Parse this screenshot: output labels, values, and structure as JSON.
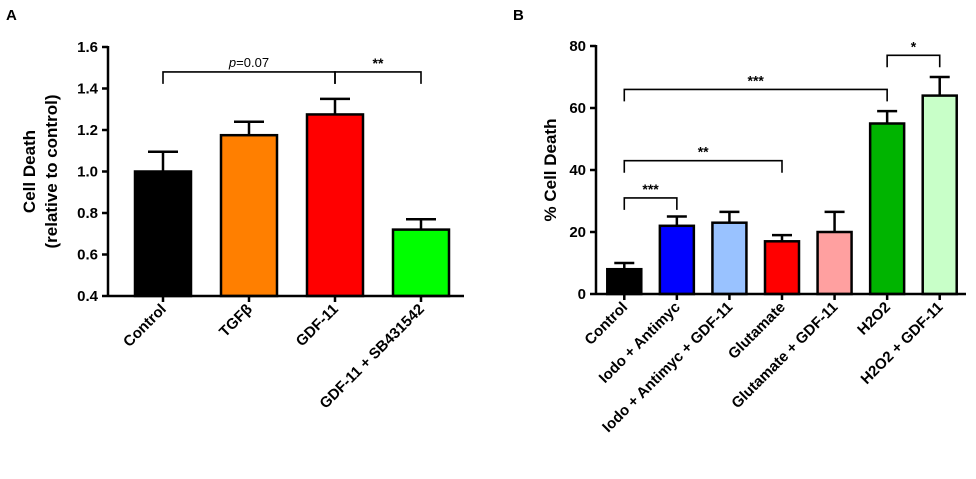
{
  "chart_data": [
    {
      "panel": "A",
      "type": "bar",
      "ylabel_lines": [
        "Cell Death",
        "(relative to control)"
      ],
      "xlabel": "",
      "ylim": [
        0.4,
        1.6
      ],
      "yticks": [
        "0.4",
        "0.6",
        "0.8",
        "1.0",
        "1.2",
        "1.4",
        "1.6"
      ],
      "categories": [
        "Control",
        "TGFβ",
        "GDF-11",
        "GDF-11 + SB431542"
      ],
      "values": [
        1.0,
        1.175,
        1.275,
        0.72
      ],
      "errors": [
        0.095,
        0.065,
        0.075,
        0.05
      ],
      "colors": [
        "#000000",
        "#ff7f00",
        "#ff0000",
        "#00ff00"
      ],
      "comparisons": [
        {
          "from": 0,
          "to": 2,
          "label": "p=0.07",
          "p_symbol": "p",
          "p_rest": "=0.07",
          "y": 1.48
        },
        {
          "from": 2,
          "to": 3,
          "label": "**",
          "y": 1.48
        }
      ]
    },
    {
      "panel": "B",
      "type": "bar",
      "ylabel": "% Cell Death",
      "xlabel": "",
      "ylim": [
        0,
        80
      ],
      "yticks": [
        "0",
        "20",
        "40",
        "60",
        "80"
      ],
      "categories": [
        "Control",
        "Iodo + Antimyc",
        "Iodo + Antimyc + GDF-11",
        "Glutamate",
        "Glutamate + GDF-11",
        "H2O2",
        "H2O2 + GDF-11"
      ],
      "values": [
        8,
        22,
        23,
        17,
        20,
        55,
        64
      ],
      "errors": [
        2,
        3,
        3.5,
        2,
        6.5,
        4,
        6
      ],
      "colors": [
        "#000000",
        "#0000ff",
        "#99c2ff",
        "#ff0000",
        "#ffa0a0",
        "#00b400",
        "#c8ffc8"
      ],
      "comparisons": [
        {
          "from": 0,
          "to": 1,
          "label": "***",
          "y": 31
        },
        {
          "from": 0,
          "to": 3,
          "label": "**",
          "y": 43
        },
        {
          "from": 0,
          "to": 5,
          "label": "***",
          "y": 66
        },
        {
          "from": 5,
          "to": 6,
          "label": "*",
          "y": 77
        }
      ]
    }
  ]
}
